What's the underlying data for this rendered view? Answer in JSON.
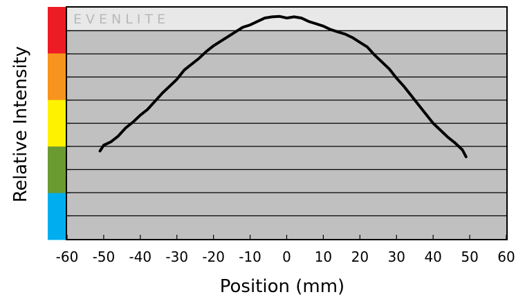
{
  "chart_data": {
    "type": "line",
    "brand": "EVENLITE",
    "xlabel": "Position (mm)",
    "ylabel": "Relative Intensity",
    "xlim": [
      -60,
      60
    ],
    "ylim": [
      0,
      10
    ],
    "x_ticks": [
      "-60",
      "-50",
      "-40",
      "-30",
      "-20",
      "-10",
      "0",
      "10",
      "20",
      "30",
      "40",
      "50",
      "60"
    ],
    "grid": true,
    "legend": "none",
    "colors": {
      "plot_background": "#c0c0c0",
      "brand_band": "#e8e8e8",
      "line": "#000000",
      "scale": [
        "#ed1c24",
        "#f7941d",
        "#fff200",
        "#6a9a32",
        "#00aeef"
      ]
    },
    "series": [
      {
        "x": [
          -51,
          -50,
          -48,
          -46,
          -44,
          -42,
          -40,
          -38,
          -36,
          -34,
          -32,
          -30,
          -28,
          -26,
          -24,
          -22,
          -20,
          -18,
          -16,
          -14,
          -12,
          -10,
          -8,
          -6,
          -4,
          -2,
          0,
          2,
          4,
          6,
          8,
          10,
          12,
          14,
          16,
          18,
          20,
          22,
          24,
          26,
          28,
          30,
          32,
          34,
          36,
          38,
          40,
          42,
          44,
          46,
          48,
          49
        ],
        "values": [
          3.8,
          4.05,
          4.2,
          4.45,
          4.8,
          5.05,
          5.35,
          5.6,
          5.95,
          6.3,
          6.6,
          6.9,
          7.3,
          7.55,
          7.8,
          8.1,
          8.35,
          8.55,
          8.75,
          8.95,
          9.15,
          9.25,
          9.4,
          9.55,
          9.6,
          9.62,
          9.55,
          9.6,
          9.55,
          9.4,
          9.3,
          9.2,
          9.05,
          8.95,
          8.85,
          8.7,
          8.5,
          8.3,
          7.95,
          7.65,
          7.35,
          6.95,
          6.6,
          6.2,
          5.8,
          5.4,
          5.0,
          4.7,
          4.4,
          4.15,
          3.85,
          3.55
        ]
      }
    ]
  }
}
